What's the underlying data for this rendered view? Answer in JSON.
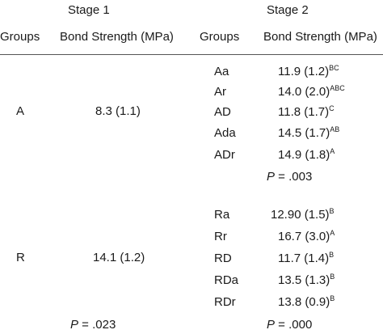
{
  "stages": {
    "stage1": "Stage 1",
    "stage2": "Stage 2"
  },
  "headers": {
    "groups1": "Groups",
    "bond1": "Bond Strength (MPa)",
    "groups2": "Groups",
    "bond2": "Bond Strength (MPa)"
  },
  "stage1_rows": [
    {
      "group": "A",
      "value": "8.3 (1.1)"
    },
    {
      "group": "R",
      "value": "14.1 (1.2)"
    }
  ],
  "stage1_p": {
    "label": "P",
    "value": " = .023"
  },
  "stage2_A": [
    {
      "group": "Aa",
      "value": "11.9 (1.2)",
      "sig": "BC"
    },
    {
      "group": "Ar",
      "value": "14.0 (2.0)",
      "sig": "ABC"
    },
    {
      "group": "AD",
      "value": "11.8 (1.7)",
      "sig": "C"
    },
    {
      "group": "Ada",
      "value": "14.5 (1.7)",
      "sig": "AB"
    },
    {
      "group": "ADr",
      "value": "14.9 (1.8)",
      "sig": "A"
    }
  ],
  "stage2_A_p": {
    "label": "P",
    "value": " = .003"
  },
  "stage2_R": [
    {
      "group": "Ra",
      "value": "12.90 (1.5)",
      "sig": "B"
    },
    {
      "group": "Rr",
      "value": "16.7 (3.0)",
      "sig": "A"
    },
    {
      "group": "RD",
      "value": "11.7 (1.4)",
      "sig": "B"
    },
    {
      "group": "RDa",
      "value": "13.5 (1.3)",
      "sig": "B"
    },
    {
      "group": "RDr",
      "value": "13.8 (0.9)",
      "sig": "B"
    }
  ],
  "stage2_R_p": {
    "label": "P",
    "value": " = .000"
  }
}
